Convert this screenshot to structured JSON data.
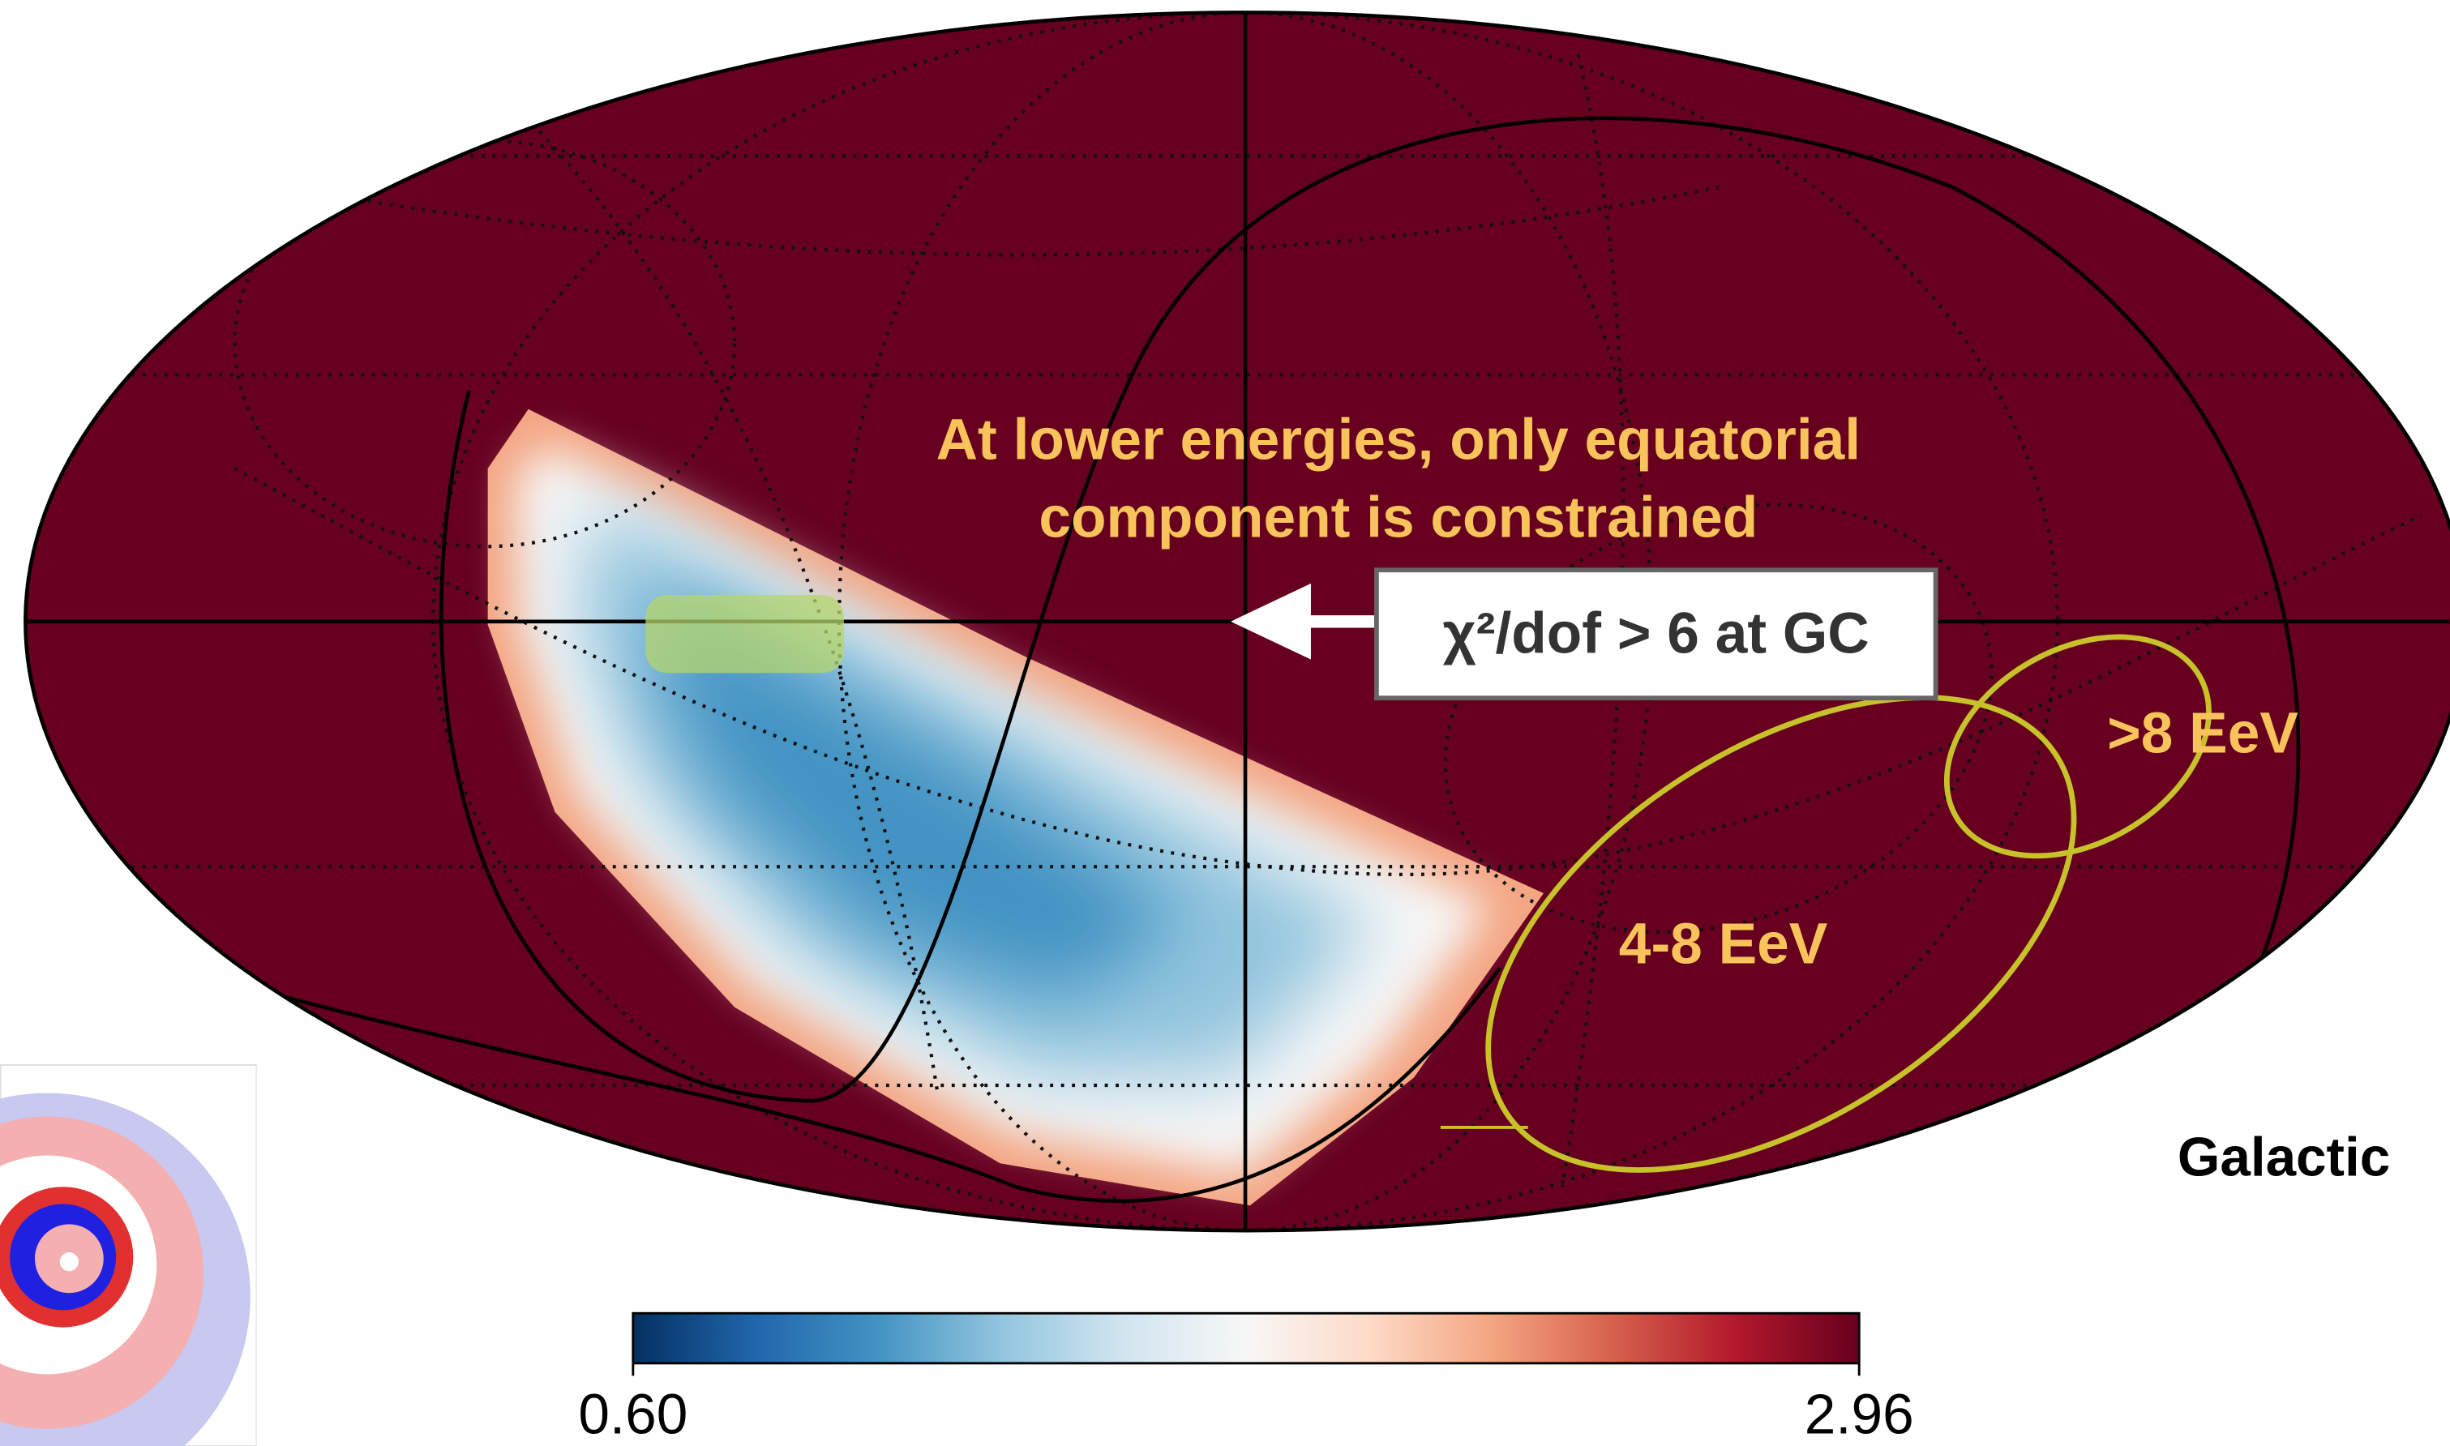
{
  "chart_data": {
    "type": "skymap",
    "annotations": [
      "At lower energies, only equatorial",
      "component  is constrained"
    ],
    "callout": "χ²/dof  > 6 at GC",
    "contours": [
      {
        "name": ">8 EeV",
        "color": "#c8c22a"
      },
      {
        "name": "4-8 EeV",
        "color": "#c8c22a"
      }
    ],
    "frame_label": "Galactic",
    "background_color": "#67001f",
    "colorbar": {
      "range": [
        0.6,
        2.96
      ],
      "ticks": [
        {
          "value": 0.6,
          "label": "0.60"
        },
        {
          "value": 2.96,
          "label": "2.96"
        }
      ],
      "colors": [
        "#053061",
        "#2166ac",
        "#4393c3",
        "#92c5de",
        "#d1e5f0",
        "#f7f7f7",
        "#fddbc7",
        "#f4a582",
        "#d6604d",
        "#b2182b",
        "#67001f"
      ]
    }
  }
}
